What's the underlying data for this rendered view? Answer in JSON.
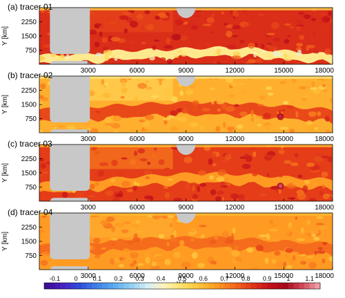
{
  "chart_data": [
    {
      "type": "heatmap",
      "title": "(a) tracer 01",
      "ylabel": "Y [km]",
      "xlim": [
        0,
        18000
      ],
      "ylim": [
        0,
        3000
      ],
      "yticks": [
        "2250",
        "1500",
        "750"
      ],
      "xticks": [
        "3000",
        "6000",
        "9000",
        "12000",
        "15000",
        "18000"
      ],
      "field": {
        "background": 0.85,
        "band": {
          "value": 0.46,
          "y_center": [
            250,
            300,
            500,
            550,
            650,
            650,
            450,
            300
          ],
          "width": 450
        },
        "upper_patch": {
          "value": 0.8
        },
        "top_edge_value": 0.55
      }
    },
    {
      "type": "heatmap",
      "title": "(b) tracer 02",
      "ylabel": "Y [km]",
      "xlim": [
        0,
        18000
      ],
      "ylim": [
        0,
        3000
      ],
      "yticks": [
        "2250",
        "1500",
        "750"
      ],
      "xticks": [
        "3000",
        "6000",
        "9000",
        "12000",
        "15000",
        "18000"
      ],
      "field": {
        "background": 0.62,
        "band": {
          "value": 0.8,
          "y_center": [
            900,
            1000,
            1150,
            1250,
            1300,
            1200,
            1050,
            900
          ],
          "width": 650
        },
        "upper_patch": {
          "value": 0.52
        },
        "top_edge_value": 0.48,
        "spot": {
          "x": 14800,
          "y": 850,
          "value": 0.95
        }
      }
    },
    {
      "type": "heatmap",
      "title": "(c) tracer 03",
      "ylabel": "Y [km]",
      "xlim": [
        0,
        18000
      ],
      "ylim": [
        0,
        3000
      ],
      "yticks": [
        "2250",
        "1500",
        "750"
      ],
      "xticks": [
        "3000",
        "6000",
        "9000",
        "12000",
        "15000",
        "18000"
      ],
      "field": {
        "background": 0.82,
        "band": {
          "value": 0.66,
          "y_center": [
            700,
            800,
            1000,
            1150,
            1250,
            1150,
            1000,
            900
          ],
          "width": 500
        },
        "upper_patch": {
          "value": 0.7
        },
        "top_edge_value": 0.6,
        "spot": {
          "x": 14800,
          "y": 800,
          "value": 1.0
        }
      }
    },
    {
      "type": "heatmap",
      "title": "(d) tracer 04",
      "ylabel": "Y [km]",
      "xlabel": "X [km]",
      "xlim": [
        0,
        18000
      ],
      "ylim": [
        0,
        3000
      ],
      "yticks": [
        "2250",
        "1500",
        "750"
      ],
      "xticks": [
        "3000",
        "6000",
        "9000",
        "12000",
        "15000",
        "18000"
      ],
      "field": {
        "background": 0.66,
        "band": {
          "value": 0.74,
          "y_center": [
            1000,
            1100,
            1300,
            1400,
            1450,
            1350,
            1200,
            1100
          ],
          "width": 550
        },
        "upper_patch": {
          "value": 0.62
        },
        "top_edge_value": 0.6
      }
    }
  ],
  "colorbar": {
    "range": [
      -0.15,
      1.15
    ],
    "ticks": [
      {
        "value": -0.1,
        "label": "-0.1"
      },
      {
        "value": 0,
        "label": "0"
      },
      {
        "value": 0.1,
        "label": "0.1"
      },
      {
        "value": 0.2,
        "label": "0.2"
      },
      {
        "value": 0.3,
        "label": "0.3"
      },
      {
        "value": 0.4,
        "label": "0.4"
      },
      {
        "value": 0.5,
        "label": "0.5"
      },
      {
        "value": 0.6,
        "label": "0.6"
      },
      {
        "value": 0.7,
        "label": "0.7"
      },
      {
        "value": 0.8,
        "label": "0.8"
      },
      {
        "value": 0.9,
        "label": "0.9"
      },
      {
        "value": 1,
        "label": "1"
      },
      {
        "value": 1.1,
        "label": "1.1"
      }
    ],
    "colors": [
      "#3a0c8c",
      "#4a1ec0",
      "#2f49d8",
      "#3d7ee8",
      "#5aa8ee",
      "#8fcdf2",
      "#d6eef6",
      "#fff3b8",
      "#ffe066",
      "#ffc338",
      "#ff9a22",
      "#f56a1c",
      "#e33a18",
      "#c5121a",
      "#a60a18",
      "#d44a5a",
      "#f0a8b0"
    ]
  },
  "mask_color": "#c8c8c8"
}
